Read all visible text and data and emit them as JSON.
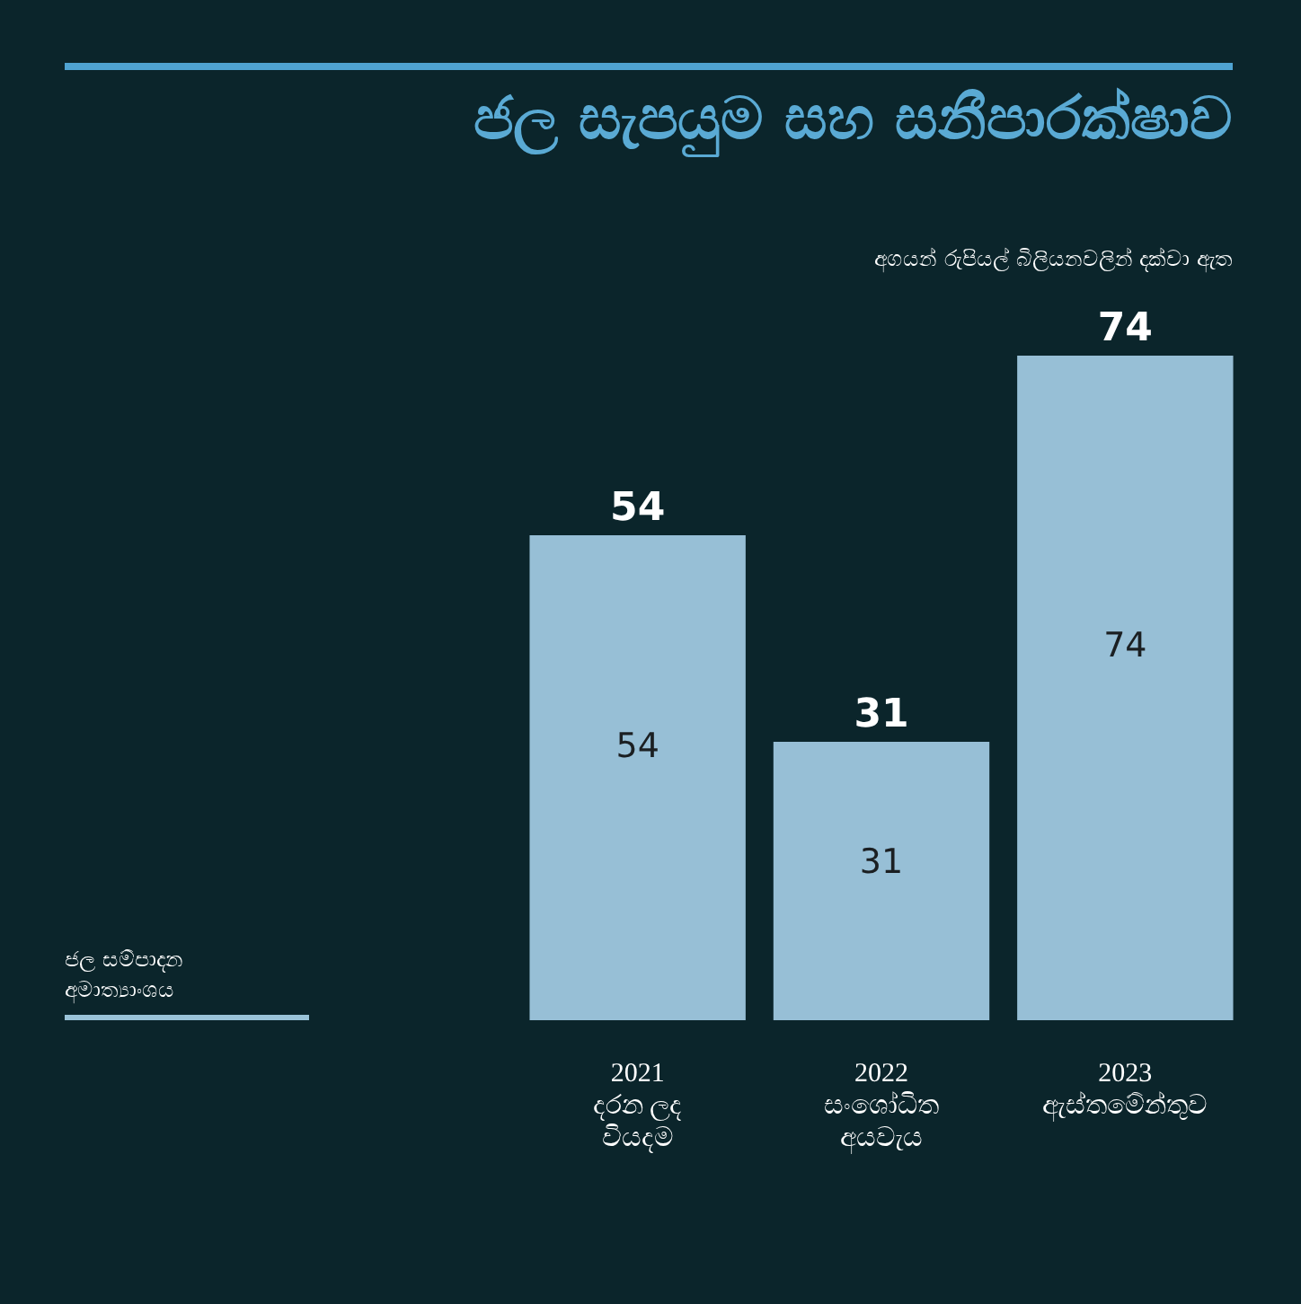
{
  "chart_data": {
    "type": "bar",
    "title": "ජල සැපයුම සහ සනීපාරක්ෂාව",
    "subtitle": "අගයන් රුපියල් බිලියනවලින් දක්වා ඇත",
    "annotations": [
      "ජල සම්පාදන\nඅමාත්‍යාංශය",
      "54",
      "31",
      "74"
    ],
    "categories": [
      "2021\nදරන ලද\nවියදම",
      "2022\nසංශෝධිත\nඅයවැය",
      "2023\nඇස්තමේන්තුව"
    ],
    "values": [
      54,
      31,
      74
    ],
    "color": "#97bfd6",
    "data_labels": true,
    "tick_labels": "x"
  }
}
